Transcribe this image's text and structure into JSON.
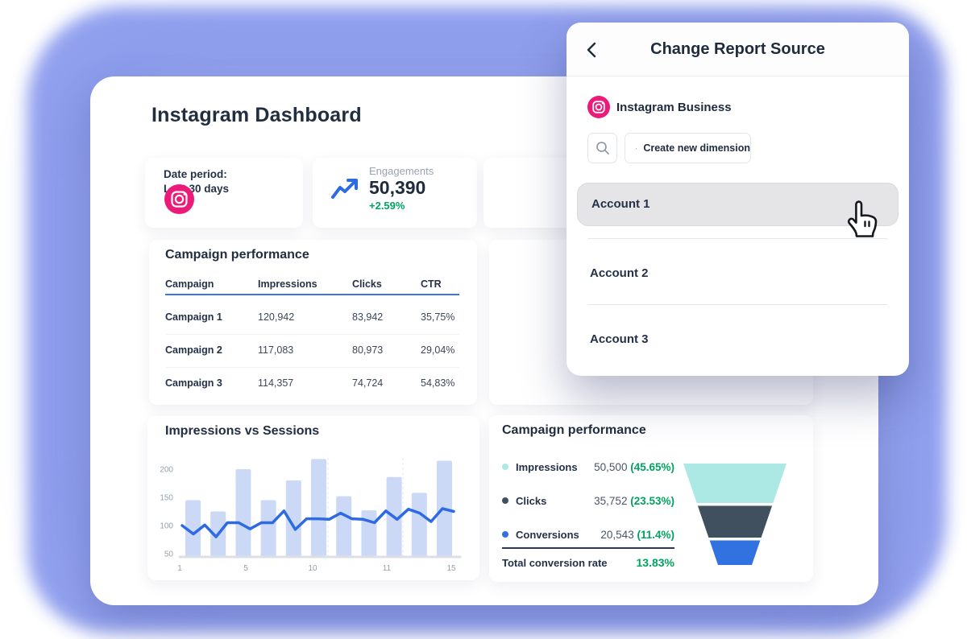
{
  "colors": {
    "accent_blue": "#2e6ae3",
    "bar_fill": "#ccd9f6",
    "green": "#00a35f",
    "pink": "#ec1a78",
    "navy": "#222e40",
    "blob": "#8d9cee"
  },
  "dashboard": {
    "title": "Instagram Dashboard",
    "date_card": {
      "label_line1": "Date period:",
      "label_line2": "Last 30 days"
    },
    "engagements_card": {
      "label": "Engagements",
      "value": "50,390",
      "delta": "+2.59%"
    },
    "campaign_table": {
      "title": "Campaign performance",
      "columns": [
        "Campaign",
        "Impressions",
        "Clicks",
        "CTR"
      ],
      "rows": [
        {
          "campaign": "Campaign 1",
          "impressions": "120,942",
          "clicks": "83,942",
          "ctr": "35,75%"
        },
        {
          "campaign": "Campaign 2",
          "impressions": "117,083",
          "clicks": "80,973",
          "ctr": "29,04%"
        },
        {
          "campaign": "Campaign 3",
          "impressions": "114,357",
          "clicks": "74,724",
          "ctr": "54,83%"
        }
      ]
    },
    "funnel_card": {
      "title": "Campaign performance",
      "legend": [
        {
          "label": "Impressions",
          "value": "50,500",
          "percent": "(45.65%)",
          "color": "#ace8e4"
        },
        {
          "label": "Clicks",
          "value": "35,752",
          "percent": "(23.53%)",
          "color": "#41505f"
        },
        {
          "label": "Conversions",
          "value": "20,543",
          "percent": "(11.4%)",
          "color": "#3272e0"
        }
      ],
      "total_label": "Total conversion rate",
      "total_value": "13.83%"
    }
  },
  "chart_data": {
    "type": "bar",
    "title": "Impressions vs Sessions",
    "x_ticks": [
      "1",
      "5",
      "10",
      "11",
      "15"
    ],
    "y_ticks": [
      50,
      100,
      150,
      200
    ],
    "ylim": [
      42,
      230
    ],
    "grid": "baseline-only",
    "legend_position": "none",
    "series": [
      {
        "name": "Impressions",
        "type": "bar",
        "values": [
          145,
          125,
          200,
          145,
          180,
          218,
          152,
          127,
          186,
          158,
          215
        ]
      },
      {
        "name": "Sessions",
        "type": "line",
        "values": [
          100,
          85,
          101,
          80,
          105,
          105,
          94,
          105,
          105,
          126,
          93,
          112,
          112,
          111,
          122,
          112,
          111,
          105,
          126,
          111,
          129,
          122,
          107,
          130,
          125
        ]
      }
    ],
    "bar_color": "#ccd9f6",
    "line_color": "#2e6ae3"
  },
  "panel": {
    "title": "Change Report Source",
    "source_label": "Instagram Business",
    "create_button_label": "Create new dimension",
    "accounts": [
      "Account 1",
      "Account 2",
      "Account 3"
    ],
    "selected_account": "Account 1"
  }
}
